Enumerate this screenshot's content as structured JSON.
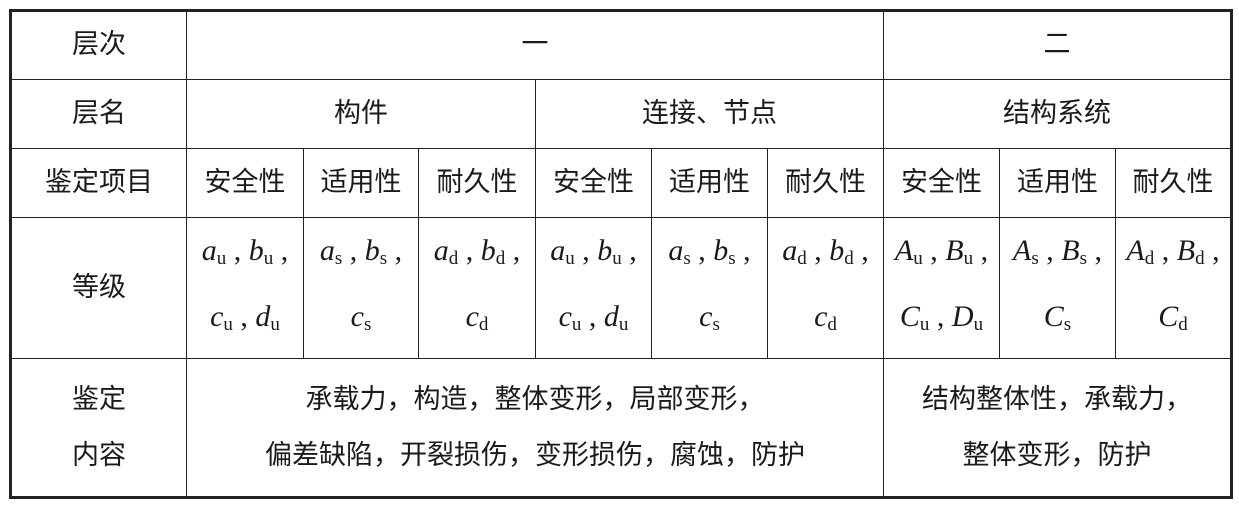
{
  "headers": {
    "level": "层次",
    "level_one": "一",
    "level_two": "二",
    "layer_name": "层名",
    "component": "构件",
    "connection": "连接、节点",
    "structure": "结构系统",
    "item": "鉴定项目",
    "grade": "等级",
    "content_label": [
      "鉴定",
      "内容"
    ]
  },
  "items": [
    "安全性",
    "适用性",
    "耐久性",
    "安全性",
    "适用性",
    "耐久性",
    "安全性",
    "适用性",
    "耐久性"
  ],
  "grades": [
    [
      [
        "a_u",
        "b_u"
      ],
      [
        "c_u",
        "d_u"
      ]
    ],
    [
      [
        "a_s",
        "b_s"
      ],
      [
        "c_s"
      ]
    ],
    [
      [
        "a_d",
        "b_d"
      ],
      [
        "c_d"
      ]
    ],
    [
      [
        "a_u",
        "b_u"
      ],
      [
        "c_u",
        "d_u"
      ]
    ],
    [
      [
        "a_s",
        "b_s"
      ],
      [
        "c_s"
      ]
    ],
    [
      [
        "a_d",
        "b_d"
      ],
      [
        "c_d"
      ]
    ],
    [
      [
        "A_u",
        "B_u"
      ],
      [
        "C_u",
        "D_u"
      ]
    ],
    [
      [
        "A_s",
        "B_s"
      ],
      [
        "C_s"
      ]
    ],
    [
      [
        "A_d",
        "B_d"
      ],
      [
        "C_d"
      ]
    ]
  ],
  "content": {
    "level_one": [
      "承载力，构造，整体变形，局部变形，",
      "偏差缺陷，开裂损伤，变形损伤，腐蚀，防护"
    ],
    "level_two": [
      "结构整体性，承载力，",
      "整体变形，防护"
    ]
  }
}
